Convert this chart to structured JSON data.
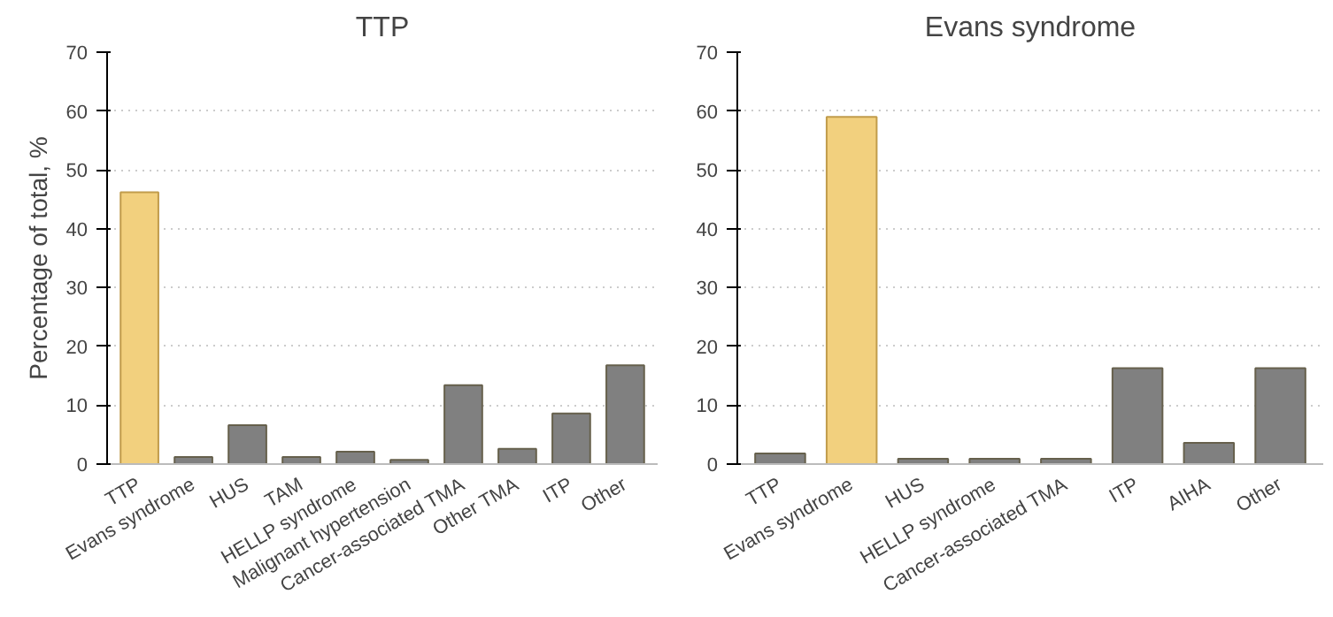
{
  "chart_data": [
    {
      "type": "bar",
      "title": "TTP",
      "ylabel": "Percentage of total, %",
      "categories": [
        "TTP",
        "Evans syndrome",
        "HUS",
        "TAM",
        "HELLP syndrome",
        "Malignant hypertension",
        "Cancer-associated TMA",
        "Other TMA",
        "ITP",
        "Other"
      ],
      "values": [
        46.2,
        1.2,
        6.6,
        1.2,
        2.1,
        0.7,
        13.4,
        2.6,
        8.6,
        16.8
      ],
      "colors": [
        "#f2d07e",
        "#808080",
        "#808080",
        "#808080",
        "#808080",
        "#808080",
        "#808080",
        "#808080",
        "#808080",
        "#808080"
      ],
      "ylim": [
        0,
        70
      ],
      "yticks": [
        0,
        10,
        20,
        30,
        40,
        50,
        60,
        70
      ],
      "grid": "y"
    },
    {
      "type": "bar",
      "title": "Evans syndrome",
      "categories": [
        "TTP",
        "Evans syndrome",
        "HUS",
        "HELLP syndrome",
        "Cancer-associated TMA",
        "ITP",
        "AIHA",
        "Other"
      ],
      "values": [
        1.8,
        59.0,
        0.9,
        0.9,
        0.9,
        16.3,
        3.6,
        16.3
      ],
      "colors": [
        "#808080",
        "#f2d07e",
        "#808080",
        "#808080",
        "#808080",
        "#808080",
        "#808080",
        "#808080"
      ],
      "ylim": [
        0,
        70
      ],
      "yticks": [
        0,
        10,
        20,
        30,
        40,
        50,
        60,
        70
      ],
      "grid": "y"
    }
  ]
}
